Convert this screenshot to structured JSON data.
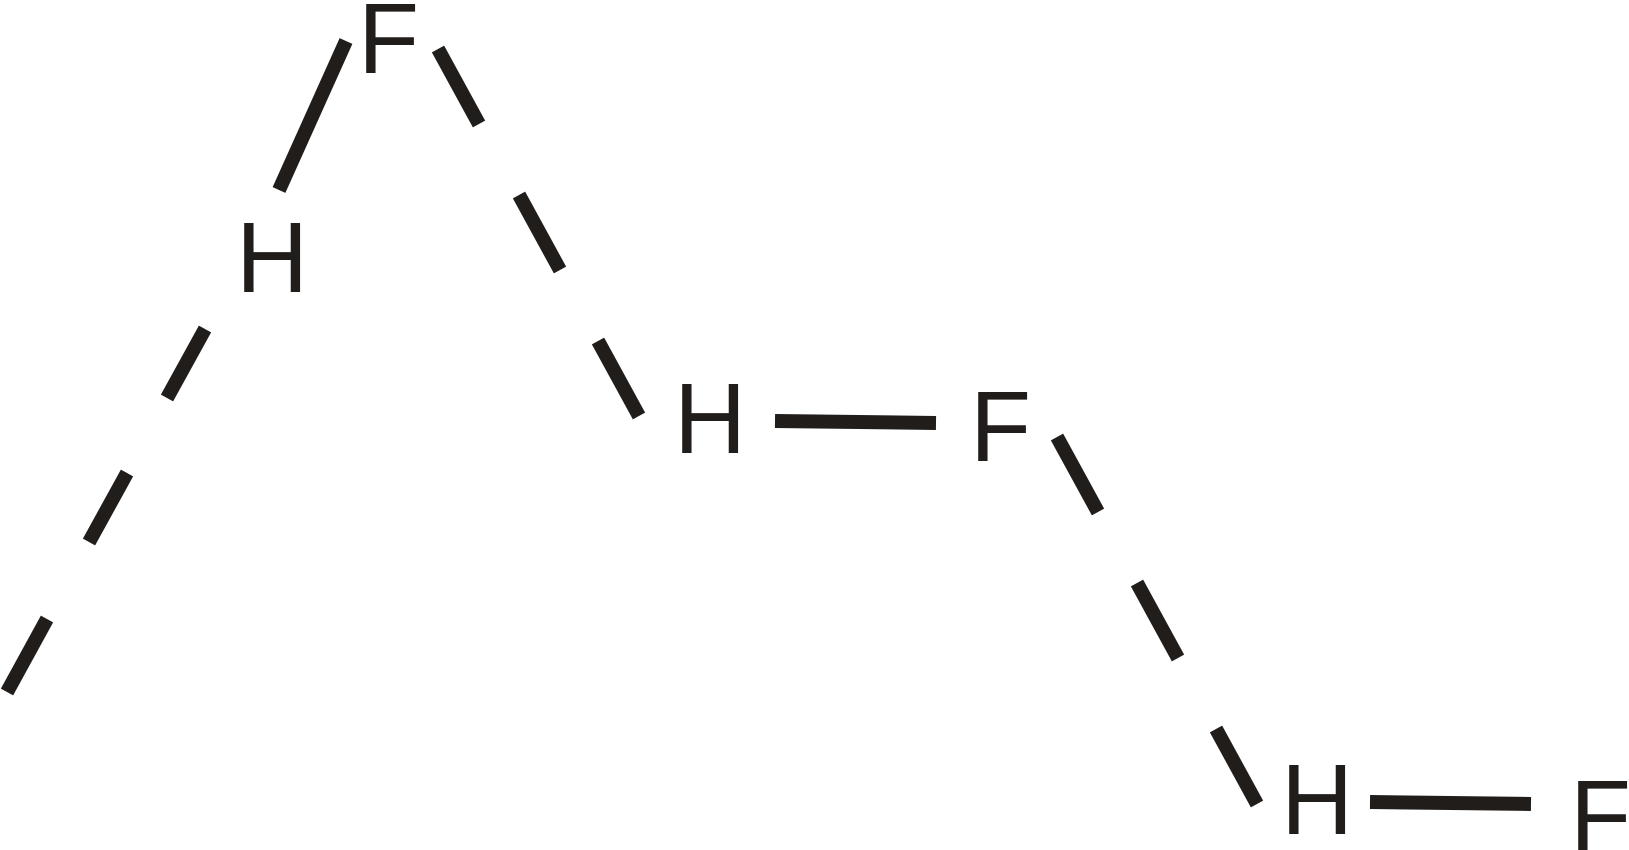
{
  "diagram": {
    "atoms": [
      {
        "id": "f1",
        "symbol": "F"
      },
      {
        "id": "h1",
        "symbol": "H"
      },
      {
        "id": "h2",
        "symbol": "H"
      },
      {
        "id": "f2",
        "symbol": "F"
      },
      {
        "id": "h3",
        "symbol": "H"
      },
      {
        "id": "f3",
        "symbol": "F"
      }
    ],
    "bonds": [
      {
        "from": "h1",
        "to": "f1",
        "type": "covalent"
      },
      {
        "from": "h2",
        "to": "f2",
        "type": "covalent"
      },
      {
        "from": "h3",
        "to": "f3",
        "type": "covalent"
      },
      {
        "from": "f1",
        "to": "h2",
        "type": "hydrogen"
      },
      {
        "from": "f2",
        "to": "h3",
        "type": "hydrogen"
      },
      {
        "from": "h1",
        "to": "offscreen",
        "type": "hydrogen"
      }
    ],
    "colors": {
      "ink": "#211d1b",
      "background": "#ffffff"
    }
  }
}
